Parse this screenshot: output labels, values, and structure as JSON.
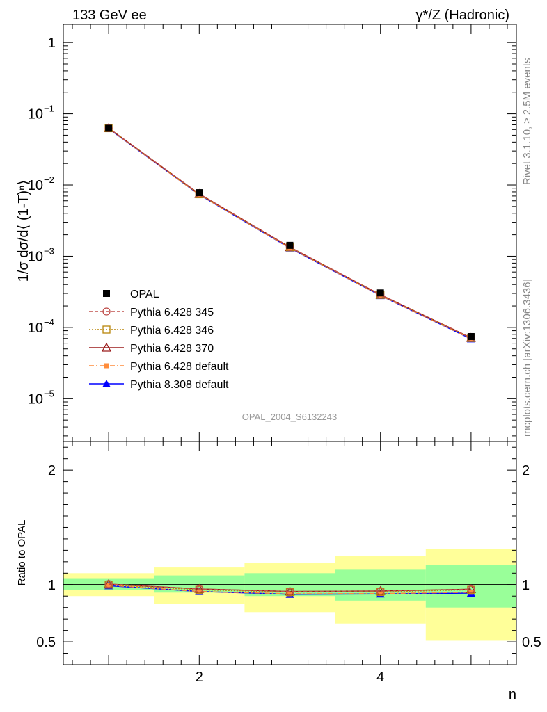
{
  "header": {
    "left_label": "133 GeV ee",
    "right_label": "γ*/Z (Hadronic)"
  },
  "side_labels": {
    "rivet": "Rivet 3.1.10, ≥ 2.5M events",
    "mcplots": "mcplots.cern.ch [arXiv:1306.3436]"
  },
  "watermark": "OPAL_2004_S6132243",
  "colors": {
    "data": "#000000",
    "p345": "#c0504d",
    "p346": "#b8860b",
    "p370": "#9b1c1c",
    "p6def": "#ff8c3a",
    "p8def": "#0000ff",
    "band_inner": "#99ff99",
    "band_outer": "#ffff99"
  },
  "chart_data": [
    {
      "type": "scatter",
      "panel": "main",
      "ylabel": "1/σ dσ/d⟨ (1-T)ⁿ⟩",
      "yscale": "log",
      "xlim": [
        0.5,
        5.5
      ],
      "ylim": [
        2.5e-06,
        1.8
      ],
      "y_ticks": [
        {
          "value": 1,
          "label": "1"
        },
        {
          "value": 0.1,
          "label": "10",
          "exp": "−1"
        },
        {
          "value": 0.01,
          "label": "10",
          "exp": "−2"
        },
        {
          "value": 0.001,
          "label": "10",
          "exp": "−3"
        },
        {
          "value": 0.0001,
          "label": "10",
          "exp": "−4"
        },
        {
          "value": 1e-05,
          "label": "10",
          "exp": "−5"
        }
      ],
      "x": [
        1,
        2,
        3,
        4,
        5
      ],
      "series": [
        {
          "name": "OPAL",
          "key": "data",
          "marker": "square",
          "values": [
            0.0625,
            0.0078,
            0.00142,
            0.000305,
            7.45e-05
          ]
        },
        {
          "name": "Pythia 6.428 345",
          "key": "p345",
          "marker": "circle-open",
          "dash": "5,3",
          "values": [
            0.0627,
            0.0075,
            0.00134,
            0.000288,
            7.15e-05
          ]
        },
        {
          "name": "Pythia 6.428 346",
          "key": "p346",
          "marker": "square-open",
          "dash": "2,2",
          "values": [
            0.0626,
            0.0074,
            0.00133,
            0.000286,
            7.1e-05
          ]
        },
        {
          "name": "Pythia 6.428 370",
          "key": "p370",
          "marker": "triangle-open",
          "dash": "",
          "values": [
            0.0628,
            0.0075,
            0.00134,
            0.000288,
            7.15e-05
          ]
        },
        {
          "name": "Pythia 6.428 default",
          "key": "p6def",
          "marker": "square-small",
          "dash": "7,3,2,3",
          "values": [
            0.0622,
            0.0073,
            0.00131,
            0.000281,
            6.95e-05
          ]
        },
        {
          "name": "Pythia 8.308 default",
          "key": "p8def",
          "marker": "triangle",
          "dash": "",
          "values": [
            0.0618,
            0.0073,
            0.0013,
            0.00028,
            6.9e-05
          ]
        }
      ]
    },
    {
      "type": "line",
      "panel": "ratio",
      "ylabel": "Ratio to OPAL",
      "xlabel": "n",
      "xlim": [
        0.5,
        5.5
      ],
      "ylim": [
        0.3,
        2.25
      ],
      "y_ticks": [
        0.5,
        1,
        2
      ],
      "x_ticks": [
        2,
        4
      ],
      "bands": [
        {
          "xlo": 0.5,
          "xhi": 1.5,
          "inner": [
            0.95,
            1.05
          ],
          "outer": [
            0.9,
            1.1
          ]
        },
        {
          "xlo": 1.5,
          "xhi": 2.5,
          "inner": [
            0.93,
            1.08
          ],
          "outer": [
            0.83,
            1.15
          ]
        },
        {
          "xlo": 2.5,
          "xhi": 3.5,
          "inner": [
            0.9,
            1.1
          ],
          "outer": [
            0.76,
            1.19
          ]
        },
        {
          "xlo": 3.5,
          "xhi": 4.5,
          "inner": [
            0.86,
            1.13
          ],
          "outer": [
            0.66,
            1.25
          ]
        },
        {
          "xlo": 4.5,
          "xhi": 5.5,
          "inner": [
            0.8,
            1.17
          ],
          "outer": [
            0.51,
            1.31
          ]
        }
      ],
      "x": [
        1,
        2,
        3,
        4,
        5
      ],
      "series": [
        {
          "name": "Pythia 6.428 345",
          "key": "p345",
          "marker": "circle-open",
          "dash": "5,3",
          "values": [
            1.005,
            0.962,
            0.94,
            0.944,
            0.96
          ]
        },
        {
          "name": "Pythia 6.428 346",
          "key": "p346",
          "marker": "square-open",
          "dash": "2,2",
          "values": [
            1.0,
            0.955,
            0.935,
            0.937,
            0.955
          ]
        },
        {
          "name": "Pythia 6.428 370",
          "key": "p370",
          "marker": "triangle-open",
          "dash": "",
          "values": [
            1.004,
            0.962,
            0.94,
            0.944,
            0.96
          ]
        },
        {
          "name": "Pythia 6.428 default",
          "key": "p6def",
          "marker": "square-small",
          "dash": "7,3,2,3",
          "values": [
            0.995,
            0.94,
            0.92,
            0.922,
            0.933
          ]
        },
        {
          "name": "Pythia 8.308 default",
          "key": "p8def",
          "marker": "triangle",
          "dash": "",
          "values": [
            0.99,
            0.94,
            0.915,
            0.918,
            0.926
          ]
        }
      ]
    }
  ]
}
